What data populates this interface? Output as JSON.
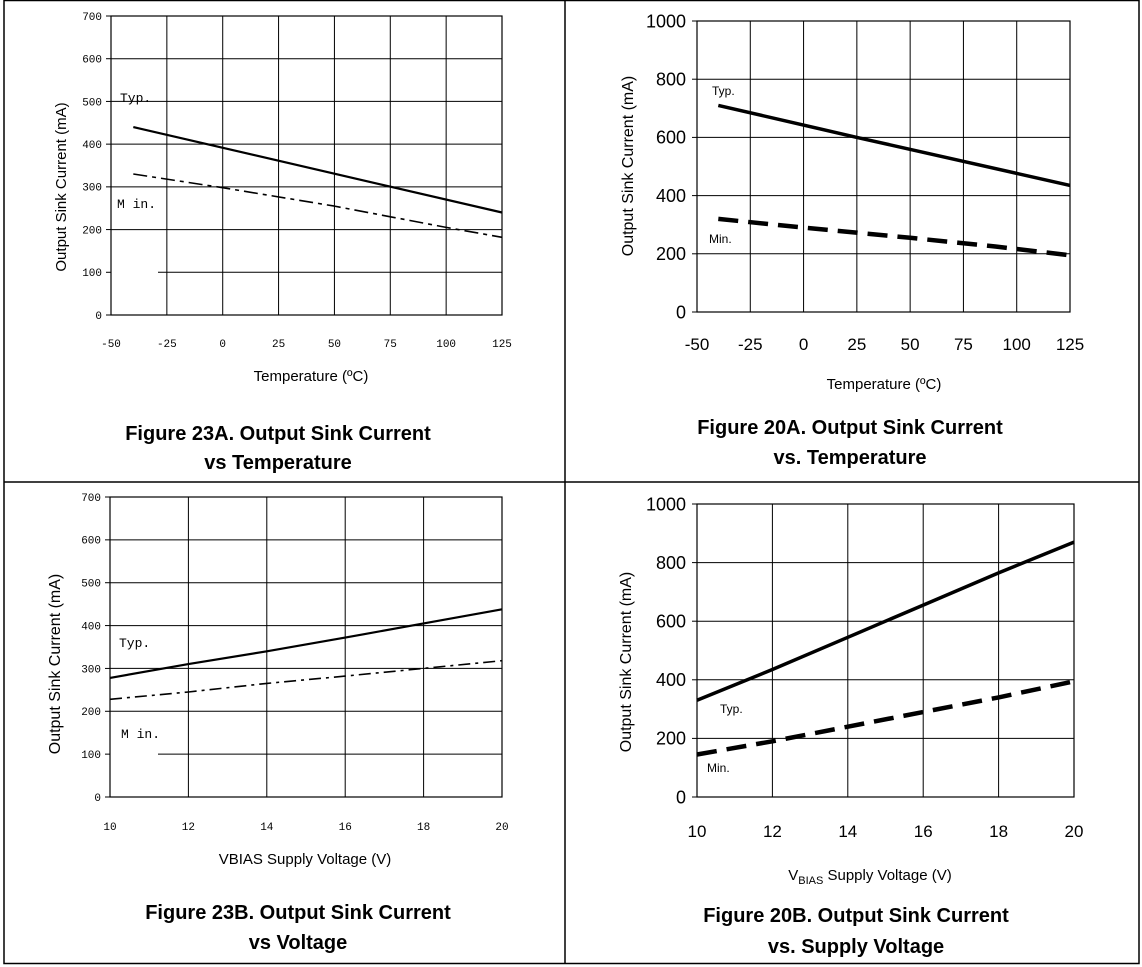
{
  "chart_data": [
    {
      "type": "line",
      "ylabel": "Output Sink Current  (mA)",
      "xlabel": "Temperature (ºC)",
      "xlim": [
        -50,
        125
      ],
      "ylim": [
        0,
        700
      ],
      "x_ticks": [
        -50,
        -25,
        0,
        25,
        50,
        75,
        100,
        125
      ],
      "y_ticks": [
        0,
        100,
        200,
        300,
        400,
        500,
        600,
        700
      ],
      "grid": true,
      "caption": [
        "Figure 23A.  Output Sink Current",
        "vs Temperature"
      ],
      "series": [
        {
          "name": "Typ.",
          "style": "solid",
          "x": [
            -40,
            125
          ],
          "y": [
            440,
            240
          ]
        },
        {
          "name": "Min.",
          "style": "dashed",
          "x": [
            -40,
            0,
            50,
            100,
            125
          ],
          "y": [
            330,
            298,
            255,
            205,
            182
          ]
        }
      ],
      "series_labels": [
        "Typ.",
        "M in."
      ]
    },
    {
      "type": "line",
      "ylabel": "Output Sink Current  (mA)",
      "xlabel": "Temperature (ºC)",
      "xlim": [
        -50,
        125
      ],
      "ylim": [
        0,
        1000
      ],
      "x_ticks": [
        -50,
        -25,
        0,
        25,
        50,
        75,
        100,
        125
      ],
      "y_ticks": [
        0,
        200,
        400,
        600,
        800,
        1000
      ],
      "grid": true,
      "caption": [
        "Figure 20A.  Output Sink Current",
        "vs. Temperature"
      ],
      "series": [
        {
          "name": "Typ.",
          "style": "solid",
          "x": [
            -40,
            25,
            125
          ],
          "y": [
            710,
            600,
            435
          ]
        },
        {
          "name": "Min.",
          "style": "dashed",
          "x": [
            -40,
            0,
            50,
            90,
            125
          ],
          "y": [
            320,
            290,
            255,
            225,
            195
          ]
        }
      ],
      "series_labels": [
        "Typ.",
        "Min."
      ]
    },
    {
      "type": "line",
      "ylabel": "Output Sink Current  (mA)",
      "xlabel": "VBIAS Supply Voltage (V)",
      "xlim": [
        10,
        20
      ],
      "ylim": [
        0,
        700
      ],
      "x_ticks": [
        10,
        12,
        14,
        16,
        18,
        20
      ],
      "y_ticks": [
        0,
        100,
        200,
        300,
        400,
        500,
        600,
        700
      ],
      "grid": true,
      "caption": [
        "Figure 23B.  Output Sink Current",
        "vs Voltage"
      ],
      "series": [
        {
          "name": "Typ.",
          "style": "solid",
          "x": [
            10,
            12,
            14,
            16,
            18,
            20
          ],
          "y": [
            278,
            310,
            340,
            372,
            405,
            438
          ]
        },
        {
          "name": "Min.",
          "style": "dashed",
          "x": [
            10,
            12,
            14,
            16,
            18,
            20
          ],
          "y": [
            228,
            245,
            265,
            282,
            300,
            318
          ]
        }
      ],
      "series_labels": [
        "Typ.",
        "M in."
      ]
    },
    {
      "type": "line",
      "ylabel": "Output Sink Current  (mA)",
      "xlabel_main": "V",
      "xlabel_sub": "BIAS",
      "xlabel_rest": " Supply Voltage (V)",
      "xlim": [
        10,
        20
      ],
      "ylim": [
        0,
        1000
      ],
      "x_ticks": [
        10,
        12,
        14,
        16,
        18,
        20
      ],
      "y_ticks": [
        0,
        200,
        400,
        600,
        800,
        1000
      ],
      "grid": true,
      "caption": [
        "Figure 20B.  Output Sink Current",
        "vs. Supply Voltage"
      ],
      "series": [
        {
          "name": "Typ.",
          "style": "solid",
          "x": [
            10,
            12,
            14,
            16,
            18,
            20
          ],
          "y": [
            330,
            435,
            545,
            655,
            765,
            870
          ]
        },
        {
          "name": "Min.",
          "style": "dashed",
          "x": [
            10,
            12,
            14,
            16,
            18,
            20
          ],
          "y": [
            145,
            190,
            240,
            290,
            340,
            395
          ]
        }
      ],
      "series_labels": [
        "Typ.",
        "Min."
      ]
    }
  ]
}
